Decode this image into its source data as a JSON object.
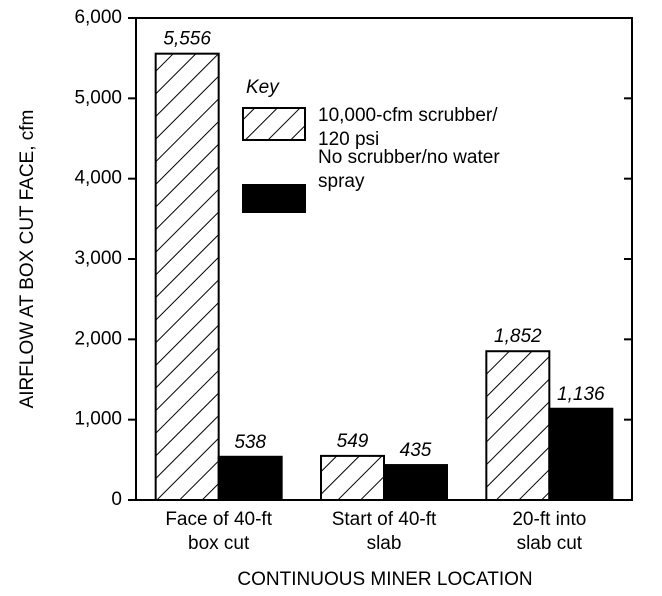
{
  "chart_data": {
    "type": "bar",
    "y_label": "AIRFLOW AT BOX CUT FACE, cfm",
    "x_label": "CONTINUOUS MINER LOCATION",
    "legend_title": "Key",
    "categories": [
      "Face of 40-ft\nbox cut",
      "Start of 40-ft\nslab",
      "20-ft into\nslab cut"
    ],
    "series": [
      {
        "name": "10,000-cfm scrubber/\n120 psi",
        "color": "#000000",
        "pattern": "hatch",
        "values": [
          5556,
          549,
          1852
        ],
        "value_labels": [
          "5,556",
          "549",
          "1,852"
        ]
      },
      {
        "name": "No scrubber/no water\n spray",
        "color": "#000000",
        "pattern": "solid",
        "values": [
          538,
          435,
          1136
        ],
        "value_labels": [
          "538",
          "435",
          "1,136"
        ]
      }
    ],
    "ylim": [
      0,
      6000
    ],
    "yticks": [
      0,
      {
        "value": 1000,
        "label": "1,000"
      },
      {
        "value": 2000,
        "label": "2,000"
      },
      {
        "value": 3000,
        "label": "3,000"
      },
      {
        "value": 4000,
        "label": "4,000"
      },
      {
        "value": 5000,
        "label": "5,000"
      },
      {
        "value": 6000,
        "label": "6,000"
      }
    ]
  }
}
